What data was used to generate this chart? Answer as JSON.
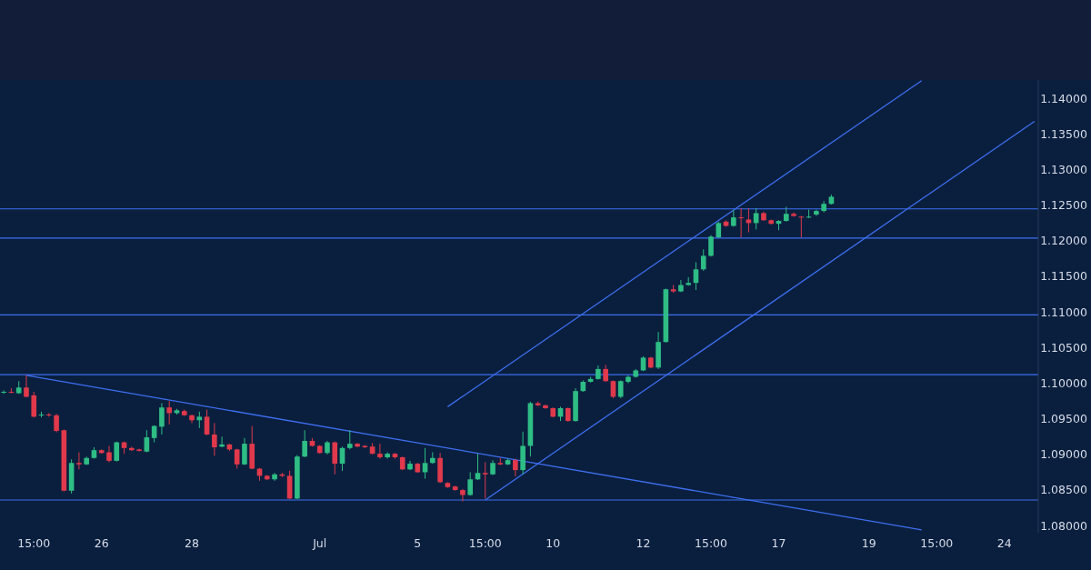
{
  "chart_data": {
    "type": "candlestick",
    "categories": [
      null,
      null,
      null,
      null,
      "15:00",
      null,
      null,
      null,
      null,
      null,
      null,
      null,
      null,
      "26",
      null,
      null,
      null,
      null,
      null,
      null,
      null,
      null,
      null,
      null,
      null,
      "28",
      null,
      null,
      null,
      null,
      null,
      null,
      null,
      null,
      null,
      null,
      null,
      null,
      null,
      null,
      null,
      null,
      "Jul",
      null,
      null,
      null,
      null,
      null,
      null,
      null,
      null,
      null,
      null,
      null,
      null,
      "5",
      null,
      null,
      null,
      null,
      null,
      null,
      null,
      null,
      "15:00",
      null,
      null,
      null,
      null,
      null,
      null,
      null,
      null,
      "10",
      null,
      null,
      null,
      null,
      null,
      null,
      null,
      null,
      null,
      null,
      null,
      "12",
      null,
      null,
      null,
      null,
      null,
      null,
      null,
      null,
      "15:00",
      null,
      null,
      null,
      null,
      null,
      null,
      null,
      null,
      "17",
      null,
      null,
      null,
      null,
      null,
      null,
      null,
      null,
      null,
      null,
      null,
      "19",
      null,
      null,
      null,
      null,
      null,
      null,
      null,
      null,
      "15:00",
      null,
      null,
      null,
      null,
      null,
      null,
      null,
      null,
      "24",
      null,
      null,
      null,
      null
    ],
    "ohlc": [
      [
        1.0987,
        1.099,
        1.0985,
        1.0988
      ],
      [
        1.0988,
        1.0993,
        1.0986,
        1.0987
      ],
      [
        1.0986,
        1.1003,
        1.0985,
        1.0994
      ],
      [
        1.0994,
        1.1011,
        1.098,
        1.0981
      ],
      [
        1.0983,
        1.0988,
        1.0952,
        1.0953
      ],
      [
        1.0955,
        1.096,
        1.0952,
        1.0956
      ],
      [
        1.0956,
        1.0958,
        1.0953,
        1.0955
      ],
      [
        1.0955,
        1.0957,
        1.0931,
        1.0933
      ],
      [
        1.0934,
        1.0935,
        1.0848,
        1.0849
      ],
      [
        1.0849,
        1.0893,
        1.0845,
        1.0888
      ],
      [
        1.0888,
        1.0903,
        1.0879,
        1.0886
      ],
      [
        1.0886,
        1.0897,
        1.0885,
        1.0895
      ],
      [
        1.0895,
        1.091,
        1.0894,
        1.0906
      ],
      [
        1.0906,
        1.0907,
        1.0901,
        1.0902
      ],
      [
        1.0903,
        1.0912,
        1.0889,
        1.0891
      ],
      [
        1.0891,
        1.0918,
        1.089,
        1.0917
      ],
      [
        1.0917,
        1.0918,
        1.0901,
        1.0909
      ],
      [
        1.0909,
        1.0911,
        1.0905,
        1.0906
      ],
      [
        1.0907,
        1.0908,
        1.0904,
        1.0905
      ],
      [
        1.0904,
        1.0934,
        1.0903,
        1.0924
      ],
      [
        1.0923,
        1.0941,
        1.0917,
        1.094
      ],
      [
        1.0939,
        1.0972,
        1.0928,
        1.0966
      ],
      [
        1.0966,
        1.0975,
        1.0942,
        1.0958
      ],
      [
        1.0958,
        1.0964,
        1.0956,
        1.0962
      ],
      [
        1.0961,
        1.0963,
        1.0954,
        1.0955
      ],
      [
        1.0955,
        1.0956,
        1.0944,
        1.0948
      ],
      [
        1.0948,
        1.096,
        1.0937,
        1.0953
      ],
      [
        1.0953,
        1.0963,
        1.0927,
        1.0928
      ],
      [
        1.0928,
        1.0944,
        1.0898,
        1.091
      ],
      [
        1.0911,
        1.0925,
        1.091,
        1.0914
      ],
      [
        1.0914,
        1.0915,
        1.0905,
        1.0907
      ],
      [
        1.0907,
        1.0908,
        1.088,
        1.0886
      ],
      [
        1.0886,
        1.0923,
        1.0885,
        1.0915
      ],
      [
        1.0915,
        1.094,
        1.0879,
        1.088
      ],
      [
        1.088,
        1.0881,
        1.0863,
        1.087
      ],
      [
        1.087,
        1.0871,
        1.0864,
        1.0865
      ],
      [
        1.0865,
        1.0874,
        1.0863,
        1.0872
      ],
      [
        1.0872,
        1.0874,
        1.0868,
        1.087
      ],
      [
        1.087,
        1.0877,
        1.0837,
        1.0838
      ],
      [
        1.0838,
        1.0899,
        1.0837,
        1.0897
      ],
      [
        1.0897,
        1.0934,
        1.0896,
        1.0919
      ],
      [
        1.0919,
        1.0923,
        1.0911,
        1.0912
      ],
      [
        1.0912,
        1.0913,
        1.0901,
        1.0902
      ],
      [
        1.0902,
        1.0919,
        1.09,
        1.0917
      ],
      [
        1.0917,
        1.0918,
        1.0872,
        1.0887
      ],
      [
        1.0887,
        1.0911,
        1.0877,
        1.0909
      ],
      [
        1.0909,
        1.0934,
        1.0907,
        1.0915
      ],
      [
        1.0915,
        1.0916,
        1.091,
        1.0911
      ],
      [
        1.0912,
        1.0913,
        1.0909,
        1.091
      ],
      [
        1.0911,
        1.0916,
        1.09,
        1.0901
      ],
      [
        1.0901,
        1.0915,
        1.0894,
        1.0896
      ],
      [
        1.0896,
        1.0903,
        1.0894,
        1.0901
      ],
      [
        1.0901,
        1.0902,
        1.0894,
        1.0896
      ],
      [
        1.0896,
        1.0897,
        1.0878,
        1.0879
      ],
      [
        1.0879,
        1.0891,
        1.0878,
        1.0887
      ],
      [
        1.0887,
        1.0888,
        1.0874,
        1.0875
      ],
      [
        1.0875,
        1.0909,
        1.0866,
        1.0888
      ],
      [
        1.0888,
        1.0903,
        1.0887,
        1.0895
      ],
      [
        1.0895,
        1.0902,
        1.086,
        1.0861
      ],
      [
        1.086,
        1.0861,
        1.0853,
        1.0854
      ],
      [
        1.0855,
        1.0856,
        1.0849,
        1.085
      ],
      [
        1.085,
        1.0851,
        1.0834,
        1.0843
      ],
      [
        1.0843,
        1.0875,
        1.0842,
        1.0865
      ],
      [
        1.0865,
        1.0901,
        1.0864,
        1.0874
      ],
      [
        1.0874,
        1.0889,
        1.0838,
        1.0872
      ],
      [
        1.0872,
        1.0892,
        1.0871,
        1.0888
      ],
      [
        1.0888,
        1.0895,
        1.0885,
        1.0886
      ],
      [
        1.0886,
        1.0894,
        1.0885,
        1.0892
      ],
      [
        1.0892,
        1.0894,
        1.0869,
        1.0878
      ],
      [
        1.0878,
        1.0932,
        1.0872,
        1.0912
      ],
      [
        1.0912,
        1.0974,
        1.0897,
        1.0972
      ],
      [
        1.0972,
        1.0974,
        1.0968,
        1.0969
      ],
      [
        1.0969,
        1.097,
        1.0964,
        1.0965
      ],
      [
        1.0965,
        1.0966,
        1.0952,
        1.0953
      ],
      [
        1.0953,
        1.0967,
        1.0947,
        1.0965
      ],
      [
        1.0965,
        1.0966,
        1.0946,
        1.0947
      ],
      [
        1.0947,
        1.0993,
        1.0946,
        1.0989
      ],
      [
        1.0989,
        1.1004,
        1.0988,
        1.1002
      ],
      [
        1.1002,
        1.1009,
        1.1001,
        1.1006
      ],
      [
        1.1006,
        1.1025,
        1.1005,
        1.102
      ],
      [
        1.102,
        1.1026,
        1.1002,
        1.1003
      ],
      [
        1.1003,
        1.1004,
        1.0979,
        1.0981
      ],
      [
        1.0981,
        1.1004,
        1.0979,
        1.1003
      ],
      [
        1.1002,
        1.1011,
        1.1,
        1.1009
      ],
      [
        1.1009,
        1.102,
        1.1008,
        1.1018
      ],
      [
        1.1018,
        1.1038,
        1.1017,
        1.1036
      ],
      [
        1.1036,
        1.1037,
        1.1021,
        1.1022
      ],
      [
        1.1022,
        1.1072,
        1.102,
        1.1058
      ],
      [
        1.1058,
        1.1133,
        1.1057,
        1.1132
      ],
      [
        1.1132,
        1.1138,
        1.1127,
        1.1129
      ],
      [
        1.1129,
        1.1145,
        1.1128,
        1.1138
      ],
      [
        1.1138,
        1.1149,
        1.1137,
        1.1141
      ],
      [
        1.1141,
        1.117,
        1.1131,
        1.116
      ],
      [
        1.116,
        1.1188,
        1.1158,
        1.1179
      ],
      [
        1.1179,
        1.1208,
        1.1178,
        1.1206
      ],
      [
        1.1205,
        1.1227,
        1.1204,
        1.1225
      ],
      [
        1.1227,
        1.1229,
        1.122,
        1.1221
      ],
      [
        1.1221,
        1.1243,
        1.122,
        1.1233
      ],
      [
        1.1233,
        1.1246,
        1.1205,
        1.1232
      ],
      [
        1.123,
        1.1246,
        1.1212,
        1.1225
      ],
      [
        1.1225,
        1.1246,
        1.1216,
        1.1239
      ],
      [
        1.1239,
        1.1241,
        1.1228,
        1.1229
      ],
      [
        1.1229,
        1.123,
        1.1223,
        1.1224
      ],
      [
        1.1224,
        1.1229,
        1.1215,
        1.1228
      ],
      [
        1.1228,
        1.1248,
        1.1227,
        1.1238
      ],
      [
        1.1238,
        1.124,
        1.1234,
        1.1235
      ],
      [
        1.1234,
        1.1235,
        1.1205,
        1.1233
      ],
      [
        1.1233,
        1.1244,
        1.1232,
        1.1234
      ],
      [
        1.1237,
        1.1244,
        1.1235,
        1.1242
      ],
      [
        1.1242,
        1.1256,
        1.124,
        1.1252
      ],
      [
        1.1252,
        1.1265,
        1.1251,
        1.1262
      ],
      null,
      null,
      null,
      null,
      null,
      null,
      null,
      null,
      null,
      null,
      null,
      null,
      null,
      null,
      null,
      null,
      null,
      null,
      null,
      null,
      null,
      null,
      null,
      null,
      null,
      null,
      null
    ],
    "colors": [
      "#2ebd85",
      "#e0394b",
      "#2ebd85",
      "#e0394b",
      "#e0394b",
      "#2ebd85",
      "#e0394b",
      "#e0394b",
      "#e0394b",
      "#2ebd85",
      "#e0394b",
      "#2ebd85",
      "#2ebd85",
      "#e0394b",
      "#e0394b",
      "#2ebd85",
      "#e0394b",
      "#e0394b",
      "#e0394b",
      "#2ebd85",
      "#2ebd85",
      "#2ebd85",
      "#e0394b",
      "#2ebd85",
      "#e0394b",
      "#e0394b",
      "#2ebd85",
      "#e0394b",
      "#e0394b",
      "#2ebd85",
      "#e0394b",
      "#e0394b",
      "#2ebd85",
      "#e0394b",
      "#e0394b",
      "#e0394b",
      "#2ebd85",
      "#e0394b",
      "#e0394b",
      "#2ebd85",
      "#2ebd85",
      "#e0394b",
      "#e0394b",
      "#2ebd85",
      "#e0394b",
      "#2ebd85",
      "#2ebd85",
      "#e0394b",
      "#e0394b",
      "#e0394b",
      "#e0394b",
      "#2ebd85",
      "#e0394b",
      "#e0394b",
      "#2ebd85",
      "#e0394b",
      "#2ebd85",
      "#2ebd85",
      "#e0394b",
      "#e0394b",
      "#e0394b",
      "#e0394b",
      "#2ebd85",
      "#2ebd85",
      "#e0394b",
      "#2ebd85",
      "#e0394b",
      "#2ebd85",
      "#e0394b",
      "#2ebd85",
      "#2ebd85",
      "#e0394b",
      "#e0394b",
      "#e0394b",
      "#2ebd85",
      "#e0394b",
      "#2ebd85",
      "#2ebd85",
      "#2ebd85",
      "#2ebd85",
      "#e0394b",
      "#e0394b",
      "#2ebd85",
      "#2ebd85",
      "#2ebd85",
      "#2ebd85",
      "#e0394b",
      "#2ebd85",
      "#2ebd85",
      "#e0394b",
      "#2ebd85",
      "#2ebd85",
      "#2ebd85",
      "#2ebd85",
      "#2ebd85",
      "#2ebd85",
      "#e0394b",
      "#2ebd85",
      "#e0394b",
      "#e0394b",
      "#2ebd85",
      "#e0394b",
      "#e0394b",
      "#2ebd85",
      "#2ebd85",
      "#e0394b",
      "#e0394b",
      "#2ebd85",
      "#2ebd85",
      "#2ebd85",
      "#2ebd85",
      null,
      null,
      null,
      null,
      null,
      null,
      null,
      null,
      null,
      null,
      null,
      null,
      null,
      null,
      null,
      null,
      null,
      null,
      null,
      null,
      null,
      null,
      null,
      null,
      null,
      null,
      null
    ],
    "series": [
      {
        "type": "line",
        "color": "#3d6ff0",
        "values": [
          null,
          null,
          null,
          1.1011,
          null,
          null,
          null,
          null,
          null,
          null,
          null,
          null,
          null,
          null,
          null,
          null,
          null,
          null,
          null,
          null,
          null,
          null,
          null,
          null,
          null,
          null,
          null,
          null,
          null,
          null,
          null,
          null,
          null,
          null,
          null,
          null,
          null,
          null,
          null,
          null,
          null,
          null,
          null,
          null,
          null,
          null,
          null,
          null,
          null,
          null,
          null,
          null,
          null,
          null,
          null,
          null,
          null,
          null,
          null,
          null,
          null,
          null,
          null,
          null,
          null,
          null,
          null,
          null,
          null,
          null,
          null,
          null,
          null,
          null,
          null,
          null,
          null,
          null,
          null,
          null,
          null,
          null,
          null,
          null,
          null,
          null,
          null,
          null,
          null,
          null,
          null,
          null,
          null,
          null,
          null,
          null,
          null,
          null,
          null,
          null,
          null,
          null,
          null,
          null,
          null,
          null,
          null,
          null,
          null,
          null,
          null,
          null,
          null,
          null,
          null,
          null,
          null,
          null,
          null,
          null,
          null,
          null,
          1.0794,
          null,
          null,
          null,
          null,
          null,
          null,
          null,
          null,
          null,
          null,
          null,
          null,
          null,
          null,
          null
        ]
      },
      {
        "type": "line",
        "color": "#3d6ff0",
        "values": [
          null,
          null,
          null,
          null,
          null,
          null,
          null,
          null,
          null,
          null,
          null,
          null,
          null,
          null,
          null,
          null,
          null,
          null,
          null,
          null,
          null,
          null,
          null,
          null,
          null,
          null,
          null,
          null,
          null,
          null,
          null,
          null,
          null,
          null,
          null,
          null,
          null,
          null,
          null,
          null,
          null,
          null,
          null,
          null,
          null,
          null,
          null,
          null,
          null,
          null,
          null,
          null,
          null,
          null,
          null,
          null,
          null,
          null,
          null,
          1.0967,
          null,
          null,
          null,
          null,
          null,
          null,
          null,
          null,
          null,
          null,
          null,
          null,
          null,
          null,
          null,
          null,
          null,
          null,
          null,
          null,
          null,
          null,
          null,
          null,
          null,
          null,
          null,
          null,
          null,
          null,
          null,
          null,
          null,
          null,
          null,
          null,
          null,
          null,
          null,
          null,
          null,
          null,
          null,
          null,
          null,
          null,
          null,
          null,
          null,
          null,
          null,
          null,
          null,
          null,
          null,
          null,
          null,
          null,
          null,
          null,
          null,
          null,
          1.1425,
          null,
          null,
          null,
          null,
          null,
          null,
          null,
          null,
          null,
          null,
          null,
          null,
          null,
          null,
          null
        ]
      },
      {
        "type": "line",
        "color": "#3d6ff0",
        "values": [
          null,
          null,
          null,
          null,
          null,
          null,
          null,
          null,
          null,
          null,
          null,
          null,
          null,
          null,
          null,
          null,
          null,
          null,
          null,
          null,
          null,
          null,
          null,
          null,
          null,
          null,
          null,
          null,
          null,
          null,
          null,
          null,
          null,
          null,
          null,
          null,
          null,
          null,
          null,
          null,
          null,
          null,
          null,
          null,
          null,
          null,
          null,
          null,
          null,
          null,
          null,
          null,
          null,
          null,
          null,
          null,
          null,
          null,
          null,
          null,
          null,
          null,
          null,
          null,
          1.0836,
          null,
          null,
          null,
          null,
          null,
          null,
          null,
          null,
          null,
          null,
          null,
          null,
          null,
          null,
          null,
          null,
          null,
          null,
          null,
          null,
          null,
          null,
          null,
          null,
          null,
          null,
          null,
          null,
          null,
          null,
          null,
          null,
          null,
          null,
          null,
          null,
          null,
          null,
          null,
          null,
          null,
          null,
          null,
          null,
          null,
          null,
          null,
          null,
          null,
          null,
          null,
          null,
          null,
          null,
          null,
          null,
          null,
          null,
          null,
          null,
          null,
          null,
          null,
          null,
          null,
          null,
          null,
          null,
          null,
          null,
          null,
          null,
          1.1368
        ]
      }
    ],
    "ref_lines": [
      {
        "axis": "y",
        "value": 1.1245,
        "color": "#3d6ff0"
      },
      {
        "axis": "y",
        "value": 1.1204,
        "color": "#3d6ff0"
      },
      {
        "axis": "y",
        "value": 1.1096,
        "color": "#3d6ff0"
      },
      {
        "axis": "y",
        "value": 1.1012,
        "color": "#3d6ff0"
      },
      {
        "axis": "y",
        "value": 1.0836,
        "color": "#3d6ff0"
      }
    ],
    "ylim": [
      1.079,
      1.1426
    ],
    "yticks": [
      {
        "value": 1.08,
        "label": "1.08000"
      },
      {
        "value": 1.085,
        "label": "1.08500"
      },
      {
        "value": 1.09,
        "label": "1.09000"
      },
      {
        "value": 1.095,
        "label": "1.09500"
      },
      {
        "value": 1.1,
        "label": "1.10000"
      },
      {
        "value": 1.105,
        "label": "1.10500"
      },
      {
        "value": 1.11,
        "label": "1.11000"
      },
      {
        "value": 1.115,
        "label": "1.11500"
      },
      {
        "value": 1.12,
        "label": "1.12000"
      },
      {
        "value": 1.125,
        "label": "1.12500"
      },
      {
        "value": 1.13,
        "label": "1.13000"
      },
      {
        "value": 1.135,
        "label": "1.13500"
      },
      {
        "value": 1.14,
        "label": "1.14000"
      }
    ]
  }
}
